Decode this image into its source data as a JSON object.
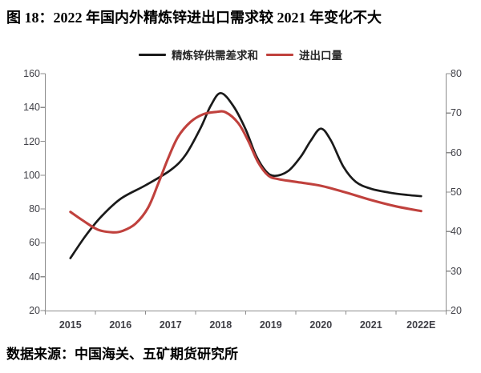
{
  "title": "图 18：2022 年国内外精炼锌进出口需求较 2021 年变化不大",
  "footer": "数据来源：中国海关、五矿期货研究所",
  "legend": [
    {
      "label": "精炼锌供需差求和",
      "color": "#1a1a1a"
    },
    {
      "label": "进出口量",
      "color": "#c0413d"
    }
  ],
  "colors": {
    "axis_line": "#8c8c8c",
    "tick_text": "#3f3f46",
    "series_black": "#1a1a1a",
    "series_red": "#c0413d"
  },
  "chart_data": {
    "type": "line",
    "title": "图 18：2022 年国内外精炼锌进出口需求较 2021 年变化不大",
    "categories": [
      "2015",
      "2016",
      "2017",
      "2018",
      "2019",
      "2020",
      "2021",
      "2022E"
    ],
    "left_axis": {
      "label": "",
      "min": 20,
      "max": 160,
      "ticks": [
        160,
        140,
        120,
        100,
        80,
        60,
        40,
        20
      ]
    },
    "right_axis": {
      "label": "",
      "min": 20,
      "max": 80,
      "ticks": [
        80,
        70,
        60,
        50,
        40,
        30,
        20
      ]
    },
    "grid": false,
    "legend_position": "top",
    "series": [
      {
        "name": "精炼锌供需差求和",
        "axis": "left",
        "color": "#1a1a1a",
        "values": [
          51,
          86,
          103,
          148,
          100,
          127,
          92,
          88
        ],
        "samples": [
          [
            0,
            51
          ],
          [
            0.3,
            64
          ],
          [
            0.6,
            75
          ],
          [
            1,
            86
          ],
          [
            1.5,
            94
          ],
          [
            2,
            103
          ],
          [
            2.3,
            112
          ],
          [
            2.6,
            128
          ],
          [
            2.8,
            141
          ],
          [
            3,
            148.5
          ],
          [
            3.25,
            141
          ],
          [
            3.5,
            127
          ],
          [
            3.7,
            112
          ],
          [
            3.9,
            102.5
          ],
          [
            4.08,
            99.6
          ],
          [
            4.35,
            102.5
          ],
          [
            4.6,
            111
          ],
          [
            4.8,
            120.5
          ],
          [
            5,
            127.5
          ],
          [
            5.2,
            120.5
          ],
          [
            5.45,
            105
          ],
          [
            5.7,
            96
          ],
          [
            6,
            92
          ],
          [
            6.35,
            89.8
          ],
          [
            6.7,
            88.4
          ],
          [
            7,
            87.6
          ]
        ]
      },
      {
        "name": "进出口量",
        "axis": "right",
        "color": "#c0413d",
        "values": [
          45,
          40,
          62,
          70,
          53.5,
          51.5,
          48,
          45
        ],
        "samples": [
          [
            0,
            45
          ],
          [
            0.25,
            42.8
          ],
          [
            0.55,
            40.5
          ],
          [
            0.85,
            39.8
          ],
          [
            1.05,
            40.2
          ],
          [
            1.3,
            42
          ],
          [
            1.55,
            46
          ],
          [
            1.75,
            52
          ],
          [
            1.95,
            58.5
          ],
          [
            2.15,
            64
          ],
          [
            2.4,
            67.8
          ],
          [
            2.65,
            69.7
          ],
          [
            2.9,
            70.3
          ],
          [
            3.1,
            70.2
          ],
          [
            3.35,
            67.5
          ],
          [
            3.55,
            63
          ],
          [
            3.75,
            57.5
          ],
          [
            3.95,
            54.2
          ],
          [
            4.15,
            53.3
          ],
          [
            4.5,
            52.6
          ],
          [
            5,
            51.6
          ],
          [
            5.5,
            49.9
          ],
          [
            6,
            48
          ],
          [
            6.5,
            46.4
          ],
          [
            7,
            45.2
          ]
        ]
      }
    ]
  }
}
